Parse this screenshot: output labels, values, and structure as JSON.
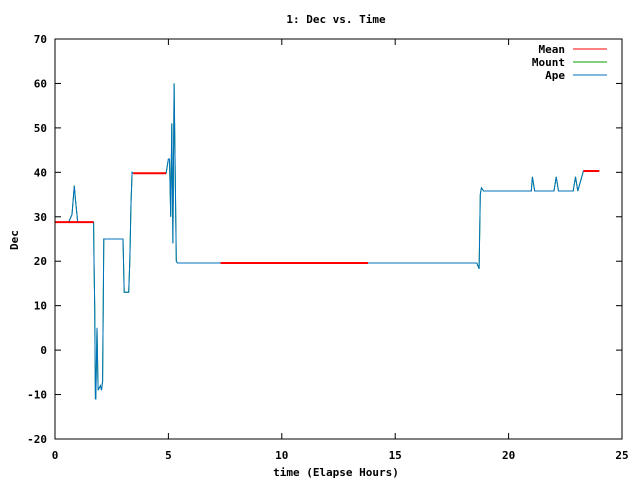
{
  "chart_data": {
    "type": "line",
    "title": "1: Dec vs. Time",
    "xlabel": "time (Elapse Hours)",
    "ylabel": "Dec",
    "xlim": [
      0,
      25
    ],
    "ylim": [
      -20,
      70
    ],
    "xticks": [
      0,
      5,
      10,
      15,
      20,
      25
    ],
    "yticks": [
      -20,
      -10,
      0,
      10,
      20,
      30,
      40,
      50,
      60,
      70
    ],
    "grid": false,
    "legend_position": "top-right",
    "series": [
      {
        "name": "Mean",
        "color": "#ff0000",
        "x": [
          0,
          1.7,
          1.7,
          3.45,
          3.45,
          4.9,
          4.9,
          7.3,
          7.3,
          13.8,
          13.8,
          23.3,
          23.3,
          24.0
        ],
        "y": [
          28.8,
          28.8,
          null,
          null,
          39.8,
          39.8,
          null,
          null,
          19.6,
          19.6,
          null,
          null,
          40.3,
          40.3
        ]
      },
      {
        "name": "Mount",
        "color": "#00a000",
        "x": [
          0,
          0.6,
          0.75,
          0.85,
          0.9,
          1.0,
          1.7,
          1.72,
          1.75,
          1.78,
          1.8,
          1.85,
          1.9,
          2.0,
          2.05,
          2.1,
          2.15,
          2.2,
          2.25,
          3.0,
          3.05,
          3.1,
          3.2,
          3.25,
          3.3,
          3.35,
          3.4,
          3.45,
          4.9,
          5.0,
          5.05,
          5.1,
          5.15,
          5.2,
          5.25,
          5.3,
          5.35,
          5.4,
          5.5,
          7.3,
          13.8,
          18.6,
          18.7,
          18.75,
          18.8,
          18.9,
          19.0,
          21.0,
          21.05,
          21.15,
          21.3,
          22.0,
          22.1,
          22.2,
          22.3,
          22.85,
          22.95,
          23.05,
          23.3,
          24.0
        ],
        "y": [
          28.8,
          28.8,
          30.5,
          37,
          34,
          28.8,
          28.8,
          20,
          10,
          -11,
          -11,
          5,
          -9,
          -8,
          -9,
          -7,
          25,
          25,
          25,
          25,
          13,
          13,
          13,
          13,
          20,
          33,
          40,
          39.8,
          39.8,
          43,
          43,
          30,
          51,
          24,
          60,
          40,
          20,
          19.6,
          19.6,
          19.6,
          19.6,
          19.6,
          18.3,
          35,
          36.5,
          35.8,
          35.8,
          35.8,
          39,
          35.8,
          35.8,
          35.8,
          39,
          35.8,
          35.8,
          35.8,
          39,
          35.8,
          40.3,
          40.3
        ]
      },
      {
        "name": "Ape",
        "color": "#0070c0",
        "x": [
          0,
          0.6,
          0.75,
          0.85,
          0.9,
          1.0,
          1.7,
          1.72,
          1.75,
          1.78,
          1.8,
          1.85,
          1.9,
          2.0,
          2.05,
          2.1,
          2.15,
          2.2,
          2.25,
          3.0,
          3.05,
          3.1,
          3.2,
          3.25,
          3.3,
          3.35,
          3.4,
          3.45,
          4.9,
          5.0,
          5.05,
          5.1,
          5.15,
          5.2,
          5.25,
          5.3,
          5.35,
          5.4,
          5.5,
          7.3,
          13.8,
          18.6,
          18.7,
          18.75,
          18.8,
          18.9,
          19.0,
          21.0,
          21.05,
          21.15,
          21.3,
          22.0,
          22.1,
          22.2,
          22.3,
          22.85,
          22.95,
          23.05,
          23.3,
          24.0
        ],
        "y": [
          28.8,
          28.8,
          30.5,
          37,
          34,
          28.8,
          28.8,
          20,
          10,
          -11,
          -11,
          5,
          -9,
          -8,
          -9,
          -7,
          25,
          25,
          25,
          25,
          13,
          13,
          13,
          13,
          20,
          33,
          40,
          39.8,
          39.8,
          43,
          43,
          30,
          51,
          24,
          60,
          40,
          20,
          19.6,
          19.6,
          19.6,
          19.6,
          19.6,
          18.3,
          35,
          36.5,
          35.8,
          35.8,
          35.8,
          39,
          35.8,
          35.8,
          35.8,
          39,
          35.8,
          35.8,
          35.8,
          39,
          35.8,
          40.3,
          40.3
        ]
      }
    ]
  }
}
